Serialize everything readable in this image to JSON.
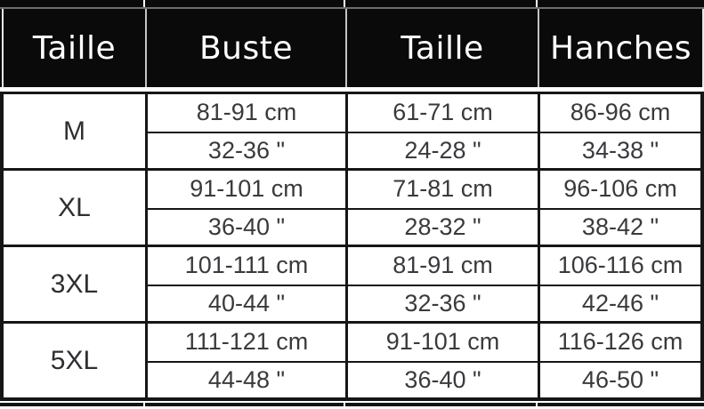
{
  "colors": {
    "header_bg": "#0a0a0a",
    "header_text": "#ffffff",
    "grid_line": "#161616",
    "data_text": "#3a3a3e",
    "cell_bg": "#ffffff"
  },
  "chart_data": {
    "type": "table",
    "columns": [
      "Taille",
      "Buste",
      "Taille",
      "Hanches"
    ],
    "rows": [
      {
        "size": "M",
        "buste_cm": "81-91 cm",
        "buste_in": "32-36 \"",
        "taille_cm": "61-71 cm",
        "taille_in": "24-28 \"",
        "hanches_cm": "86-96 cm",
        "hanches_in": "34-38 \""
      },
      {
        "size": "XL",
        "buste_cm": "91-101 cm",
        "buste_in": "36-40 \"",
        "taille_cm": "71-81 cm",
        "taille_in": "28-32 \"",
        "hanches_cm": "96-106 cm",
        "hanches_in": "38-42 \""
      },
      {
        "size": "3XL",
        "buste_cm": "101-111 cm",
        "buste_in": "40-44 \"",
        "taille_cm": "81-91 cm",
        "taille_in": "32-36 \"",
        "hanches_cm": "106-116 cm",
        "hanches_in": "42-46 \""
      },
      {
        "size": "5XL",
        "buste_cm": "111-121 cm",
        "buste_in": "44-48 \"",
        "taille_cm": "91-101 cm",
        "taille_in": "36-40 \"",
        "hanches_cm": "116-126 cm",
        "hanches_in": "46-50 \""
      }
    ]
  }
}
